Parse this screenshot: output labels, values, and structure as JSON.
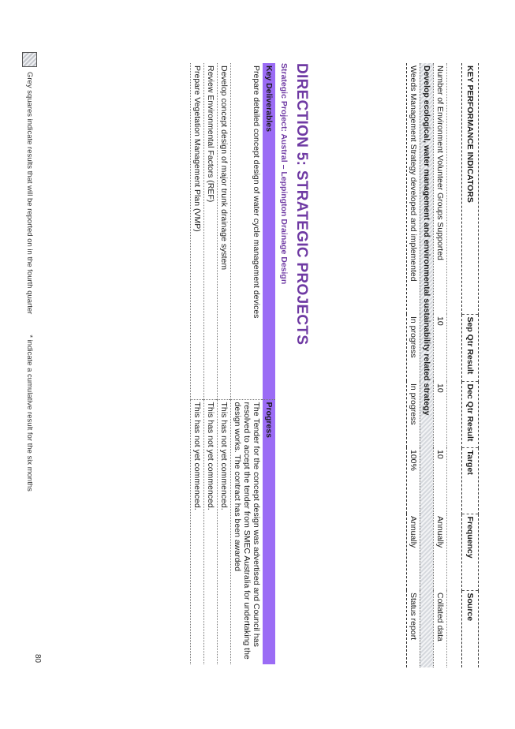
{
  "kpi_table": {
    "headers": [
      "KEY PERFORMANCE INDICATORS",
      "Sep Qtr Result",
      "Dec Qtr Result",
      "Target",
      "Frequency",
      "Source"
    ],
    "rows": [
      [
        "Number of Environment Volunteer Groups Supported",
        "10",
        "10",
        "10",
        "Annually",
        "Collated data"
      ]
    ],
    "section": "Develop ecological, water management and environmental sustainability related strategy",
    "section_rows": [
      [
        "Weeds Management Strategy developed and implemented",
        "In progress",
        "In progress",
        "100%",
        "Annually",
        "Status report"
      ]
    ]
  },
  "direction_title": "DIRECTION 5: STRATEGIC PROJECTS",
  "project_title": "Strategic Project: Austral – Leppington Drainage Design",
  "deliverables": {
    "headers": [
      "Key Deliverables",
      "Progress"
    ],
    "rows": [
      [
        "Prepare detailed concept design of water cycle management devices",
        "The Tender for the concept design was advertised and Council has resolved to accept the tender from SMEC Australia for undertaking the design works. The contract has been awarded"
      ],
      [
        "Develop concept design of major trunk drainage system",
        "This has not yet commenced."
      ],
      [
        "Review Environmental Factors (REF)",
        "This has not yet commenced."
      ],
      [
        "Prepare Vegetation Management Plan (VMP)",
        "This has not yet commenced."
      ]
    ]
  },
  "footnote": {
    "grey_text": "Grey squares indicate results that will be reported on in the fourth quarter",
    "star_text": "* indicate a cumulative result for the six months"
  },
  "page_number": "80"
}
